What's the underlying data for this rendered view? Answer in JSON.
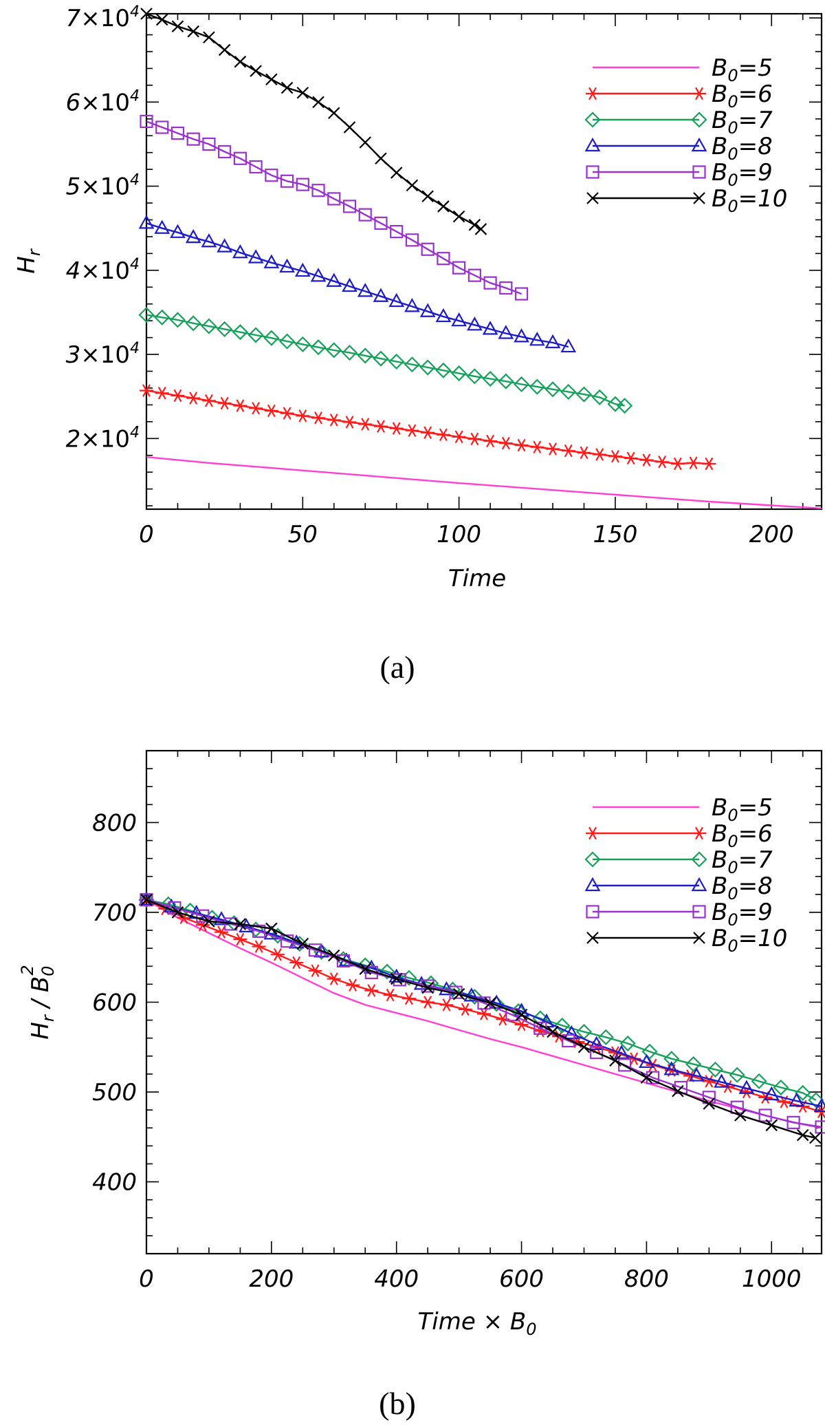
{
  "chart_data": [
    {
      "type": "line",
      "caption": "(a)",
      "xlabel": "Time",
      "ylabel_main": "H",
      "ylabel_sub": "r",
      "xlim": [
        0,
        216
      ],
      "ylim": [
        11600,
        70500
      ],
      "yscale_exponent": 4,
      "x_ticks": [
        0,
        50,
        100,
        150,
        200
      ],
      "x_tick_labels": [
        "0",
        "50",
        "100",
        "150",
        "200"
      ],
      "y_ticks": [
        20000,
        30000,
        40000,
        50000,
        60000,
        70000
      ],
      "y_tick_mantissas": [
        "2",
        "3",
        "4",
        "5",
        "6",
        "7"
      ],
      "x_minor_step": 10,
      "y_minor_step": 2000,
      "legend_position": "top-right",
      "series": [
        {
          "name": "5",
          "color": "#ff3fd2",
          "marker": "none",
          "x": [
            0,
            20,
            40,
            60,
            80,
            100,
            120,
            140,
            160,
            180,
            200,
            216
          ],
          "y": [
            17800,
            17100,
            16500,
            15900,
            15300,
            14700,
            14150,
            13600,
            13050,
            12500,
            12050,
            11700
          ]
        },
        {
          "name": "6",
          "color": "#ff1a1a",
          "marker": "asterisk",
          "x": [
            0,
            5,
            10,
            15,
            20,
            25,
            30,
            35,
            40,
            45,
            50,
            55,
            60,
            65,
            70,
            75,
            80,
            85,
            90,
            95,
            100,
            105,
            110,
            115,
            120,
            125,
            130,
            135,
            140,
            145,
            150,
            155,
            160,
            165,
            170,
            175,
            180
          ],
          "y": [
            25700,
            25400,
            25100,
            24800,
            24500,
            24200,
            23900,
            23600,
            23300,
            23000,
            22700,
            22450,
            22200,
            21950,
            21700,
            21450,
            21200,
            20950,
            20700,
            20450,
            20200,
            19950,
            19700,
            19450,
            19200,
            18980,
            18760,
            18540,
            18320,
            18100,
            17880,
            17660,
            17440,
            17220,
            17000,
            17100,
            17000
          ]
        },
        {
          "name": "7",
          "color": "#16a05a",
          "marker": "diamond",
          "x": [
            0,
            5,
            10,
            15,
            20,
            25,
            30,
            35,
            40,
            45,
            50,
            55,
            60,
            65,
            70,
            75,
            80,
            85,
            90,
            95,
            100,
            105,
            110,
            115,
            120,
            125,
            130,
            135,
            140,
            145,
            150,
            153
          ],
          "y": [
            34700,
            34400,
            34100,
            33700,
            33350,
            33000,
            32650,
            32300,
            31950,
            31550,
            31200,
            30850,
            30500,
            30200,
            29850,
            29500,
            29150,
            28800,
            28450,
            28100,
            27750,
            27400,
            27100,
            26800,
            26450,
            26150,
            25850,
            25550,
            25250,
            24900,
            24100,
            23900
          ]
        },
        {
          "name": "8",
          "color": "#1c1cc8",
          "marker": "triangle",
          "x": [
            0,
            5,
            10,
            15,
            20,
            25,
            30,
            35,
            40,
            45,
            50,
            55,
            60,
            65,
            70,
            75,
            80,
            85,
            90,
            95,
            100,
            105,
            110,
            115,
            120,
            125,
            130,
            135
          ],
          "y": [
            45600,
            45000,
            44500,
            43900,
            43400,
            42800,
            42100,
            41500,
            40900,
            40400,
            39900,
            39300,
            38700,
            38100,
            37500,
            36900,
            36300,
            35700,
            35100,
            34500,
            34000,
            33500,
            33000,
            32500,
            32100,
            31700,
            31400,
            30900
          ]
        },
        {
          "name": "9",
          "color": "#9a32cc",
          "marker": "square",
          "x": [
            0,
            5,
            10,
            15,
            20,
            25,
            30,
            35,
            40,
            45,
            50,
            55,
            60,
            65,
            70,
            75,
            80,
            85,
            90,
            95,
            100,
            105,
            110,
            115,
            120
          ],
          "y": [
            57700,
            57000,
            56300,
            55600,
            55000,
            54100,
            53300,
            52300,
            51300,
            50600,
            50200,
            49500,
            48500,
            47600,
            46600,
            45600,
            44600,
            43600,
            42500,
            41400,
            40300,
            39400,
            38500,
            37900,
            37200
          ]
        },
        {
          "name": "10",
          "color": "#000000",
          "marker": "x",
          "x": [
            0,
            5,
            10,
            15,
            20,
            25,
            30,
            35,
            40,
            45,
            50,
            55,
            60,
            65,
            70,
            75,
            80,
            85,
            90,
            95,
            100,
            105,
            107
          ],
          "y": [
            70500,
            69800,
            69000,
            68400,
            67700,
            66200,
            64800,
            63700,
            62700,
            61700,
            61100,
            60000,
            58700,
            57000,
            55200,
            53300,
            51600,
            50100,
            48800,
            47600,
            46400,
            45400,
            44900
          ]
        }
      ]
    },
    {
      "type": "line",
      "caption": "(b)",
      "xlabel": "Time × B",
      "xlabel_sub": "0",
      "ylabel_main": "H",
      "ylabel_sub": "r",
      "ylabel_mid": " /  B",
      "ylabel_sub2": "0",
      "ylabel_sup": "2",
      "xlim": [
        0,
        1080
      ],
      "ylim": [
        320,
        880
      ],
      "x_ticks": [
        0,
        200,
        400,
        600,
        800,
        1000
      ],
      "x_tick_labels": [
        "0",
        "200",
        "400",
        "600",
        "800",
        "1000"
      ],
      "y_ticks": [
        400,
        500,
        600,
        700,
        800
      ],
      "y_tick_labels": [
        "400",
        "500",
        "600",
        "700",
        "800"
      ],
      "x_minor_step": 50,
      "y_minor_step": 20,
      "legend_position": "top-right",
      "series": [
        {
          "name": "5",
          "color": "#ff3fd2",
          "marker": "none",
          "x": [
            0,
            50,
            100,
            150,
            200,
            250,
            300,
            350,
            400,
            450,
            500,
            550,
            600,
            650,
            700,
            750,
            800,
            850,
            900,
            950,
            1000,
            1050,
            1080
          ],
          "y": [
            714,
            694,
            677,
            660,
            644,
            627,
            610,
            597,
            588,
            579,
            569,
            559,
            550,
            540,
            530,
            520,
            510,
            500,
            490,
            481,
            472,
            464,
            460
          ]
        },
        {
          "name": "6",
          "color": "#ff1a1a",
          "marker": "asterisk",
          "x": [
            0,
            30,
            60,
            90,
            120,
            150,
            180,
            210,
            240,
            270,
            300,
            330,
            360,
            390,
            420,
            450,
            480,
            510,
            540,
            570,
            600,
            630,
            660,
            690,
            720,
            750,
            780,
            810,
            840,
            870,
            900,
            930,
            960,
            990,
            1020,
            1050,
            1080
          ],
          "y": [
            714,
            704,
            694,
            686,
            678,
            670,
            662,
            653,
            644,
            635,
            626,
            619,
            613,
            608,
            604,
            600,
            597,
            592,
            587,
            581,
            575,
            568,
            562,
            556,
            550,
            544,
            537,
            530,
            524,
            518,
            512,
            506,
            500,
            494,
            489,
            484,
            478
          ]
        },
        {
          "name": "7",
          "color": "#16a05a",
          "marker": "diamond",
          "x": [
            0,
            35,
            70,
            105,
            140,
            175,
            210,
            245,
            280,
            315,
            350,
            385,
            420,
            455,
            490,
            525,
            560,
            595,
            630,
            665,
            700,
            735,
            770,
            805,
            840,
            875,
            910,
            945,
            980,
            1015,
            1050,
            1071
          ],
          "y": [
            714,
            709,
            702,
            694,
            688,
            681,
            674,
            665,
            656,
            648,
            641,
            634,
            627,
            621,
            614,
            606,
            598,
            590,
            582,
            574,
            567,
            561,
            554,
            545,
            537,
            531,
            525,
            519,
            512,
            505,
            499,
            491
          ]
        },
        {
          "name": "8",
          "color": "#1c1cc8",
          "marker": "triangle",
          "x": [
            0,
            40,
            80,
            120,
            160,
            200,
            240,
            280,
            320,
            360,
            400,
            440,
            480,
            520,
            560,
            600,
            640,
            680,
            720,
            760,
            800,
            840,
            880,
            920,
            960,
            1000,
            1040,
            1080
          ],
          "y": [
            714,
            706,
            699,
            692,
            684,
            676,
            666,
            656,
            646,
            638,
            628,
            620,
            614,
            607,
            599,
            590,
            578,
            565,
            553,
            543,
            533,
            525,
            518,
            511,
            504,
            497,
            490,
            484
          ]
        },
        {
          "name": "9",
          "color": "#9a32cc",
          "marker": "square",
          "x": [
            0,
            45,
            90,
            135,
            180,
            225,
            270,
            315,
            360,
            405,
            450,
            495,
            540,
            585,
            630,
            675,
            720,
            765,
            810,
            855,
            900,
            945,
            990,
            1035,
            1080
          ],
          "y": [
            714,
            705,
            696,
            687,
            679,
            668,
            658,
            646,
            633,
            625,
            618,
            611,
            599,
            586,
            571,
            557,
            544,
            530,
            516,
            505,
            494,
            483,
            474,
            466,
            461
          ]
        },
        {
          "name": "10",
          "color": "#000000",
          "marker": "x",
          "x": [
            0,
            50,
            100,
            150,
            200,
            250,
            300,
            350,
            400,
            450,
            500,
            550,
            600,
            650,
            700,
            750,
            800,
            850,
            900,
            950,
            1000,
            1050,
            1070
          ],
          "y": [
            714,
            700,
            690,
            687,
            682,
            665,
            652,
            637,
            626,
            616,
            609,
            599,
            586,
            567,
            550,
            535,
            516,
            501,
            487,
            474,
            463,
            452,
            449
          ]
        }
      ]
    }
  ]
}
